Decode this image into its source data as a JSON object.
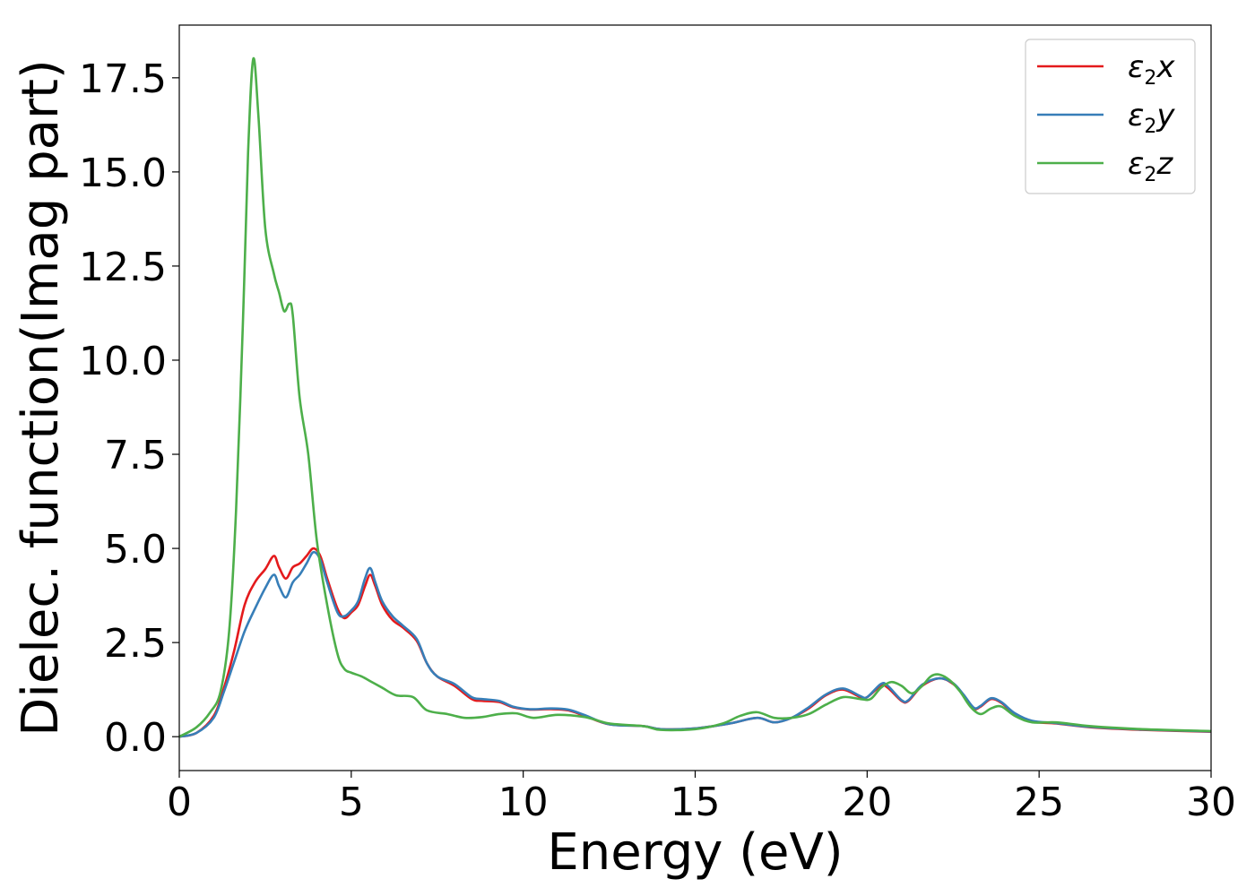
{
  "chart_data": {
    "type": "line",
    "xlabel": "Energy (eV)",
    "ylabel": "Dielec. function(Imag part)",
    "xlim": [
      0,
      30
    ],
    "ylim": [
      -0.9,
      18.9
    ],
    "xticks": [
      0,
      5,
      10,
      15,
      20,
      25,
      30
    ],
    "xtick_labels": [
      "0",
      "5",
      "10",
      "15",
      "20",
      "25",
      "30"
    ],
    "yticks": [
      0.0,
      2.5,
      5.0,
      7.5,
      10.0,
      12.5,
      15.0,
      17.5
    ],
    "ytick_labels": [
      "0.0",
      "2.5",
      "5.0",
      "7.5",
      "10.0",
      "12.5",
      "15.0",
      "17.5"
    ],
    "grid": false,
    "legend_position": "top-right",
    "series": [
      {
        "name": "ε₂x",
        "legend_base": "ε",
        "legend_sub": "2",
        "legend_tail": "x",
        "color": "#e41a1c",
        "x": [
          0,
          0.5,
          1.0,
          1.3,
          1.6,
          1.9,
          2.2,
          2.5,
          2.75,
          2.9,
          3.1,
          3.3,
          3.5,
          3.7,
          3.9,
          4.1,
          4.3,
          4.6,
          4.8,
          5.0,
          5.2,
          5.4,
          5.55,
          5.7,
          5.9,
          6.2,
          6.5,
          6.9,
          7.2,
          7.5,
          8.0,
          8.5,
          8.8,
          9.3,
          9.7,
          10.2,
          10.8,
          11.3,
          11.8,
          12.5,
          13.5,
          14.0,
          15.0,
          16.0,
          16.8,
          17.3,
          17.8,
          18.3,
          18.8,
          19.3,
          19.8,
          20.0,
          20.4,
          20.6,
          21.0,
          21.2,
          21.6,
          22.1,
          22.5,
          22.8,
          23.1,
          23.3,
          23.6,
          23.9,
          24.3,
          24.8,
          25.5,
          26.5,
          28.0,
          30.0
        ],
        "y": [
          0.0,
          0.1,
          0.55,
          1.3,
          2.3,
          3.5,
          4.1,
          4.45,
          4.8,
          4.5,
          4.2,
          4.5,
          4.6,
          4.8,
          5.0,
          4.8,
          4.2,
          3.4,
          3.15,
          3.3,
          3.5,
          4.0,
          4.3,
          4.0,
          3.5,
          3.1,
          2.9,
          2.55,
          1.95,
          1.6,
          1.35,
          1.0,
          0.95,
          0.92,
          0.78,
          0.72,
          0.73,
          0.7,
          0.55,
          0.33,
          0.28,
          0.2,
          0.22,
          0.35,
          0.5,
          0.38,
          0.5,
          0.75,
          1.1,
          1.25,
          1.05,
          1.05,
          1.35,
          1.3,
          0.95,
          0.95,
          1.35,
          1.55,
          1.4,
          1.1,
          0.75,
          0.8,
          1.0,
          0.9,
          0.6,
          0.4,
          0.35,
          0.25,
          0.18,
          0.13
        ]
      },
      {
        "name": "ε₂y",
        "legend_base": "ε",
        "legend_sub": "2",
        "legend_tail": "y",
        "color": "#377eb8",
        "x": [
          0,
          0.5,
          1.0,
          1.3,
          1.6,
          1.9,
          2.2,
          2.5,
          2.75,
          2.9,
          3.1,
          3.3,
          3.5,
          3.7,
          3.9,
          4.1,
          4.3,
          4.6,
          4.8,
          5.0,
          5.2,
          5.4,
          5.55,
          5.7,
          5.9,
          6.2,
          6.5,
          6.9,
          7.2,
          7.5,
          8.0,
          8.5,
          8.8,
          9.3,
          9.7,
          10.2,
          10.8,
          11.3,
          11.8,
          12.5,
          13.5,
          14.0,
          15.0,
          16.0,
          16.8,
          17.3,
          17.8,
          18.3,
          18.8,
          19.3,
          19.8,
          20.0,
          20.4,
          20.6,
          21.0,
          21.2,
          21.6,
          22.1,
          22.5,
          22.8,
          23.1,
          23.3,
          23.6,
          23.9,
          24.3,
          24.8,
          25.5,
          26.5,
          28.0,
          30.0
        ],
        "y": [
          0.0,
          0.1,
          0.5,
          1.2,
          2.0,
          2.8,
          3.4,
          3.95,
          4.3,
          4.0,
          3.7,
          4.1,
          4.3,
          4.6,
          4.9,
          4.7,
          4.1,
          3.3,
          3.2,
          3.35,
          3.6,
          4.2,
          4.48,
          4.1,
          3.6,
          3.2,
          2.95,
          2.6,
          1.95,
          1.6,
          1.4,
          1.05,
          1.0,
          0.95,
          0.8,
          0.73,
          0.75,
          0.72,
          0.57,
          0.33,
          0.28,
          0.2,
          0.22,
          0.35,
          0.5,
          0.38,
          0.5,
          0.78,
          1.12,
          1.28,
          1.08,
          1.05,
          1.4,
          1.35,
          0.97,
          0.97,
          1.38,
          1.55,
          1.42,
          1.12,
          0.77,
          0.82,
          1.02,
          0.92,
          0.62,
          0.42,
          0.36,
          0.26,
          0.19,
          0.14
        ]
      },
      {
        "name": "ε₂z",
        "legend_base": "ε",
        "legend_sub": "2",
        "legend_tail": "z",
        "color": "#4daf4a",
        "x": [
          0,
          0.5,
          0.9,
          1.2,
          1.45,
          1.65,
          1.85,
          2.0,
          2.15,
          2.3,
          2.5,
          2.75,
          2.9,
          3.05,
          3.2,
          3.3,
          3.5,
          3.75,
          4.0,
          4.3,
          4.6,
          4.8,
          5.0,
          5.3,
          5.6,
          5.9,
          6.3,
          6.8,
          7.2,
          7.8,
          8.3,
          8.8,
          9.3,
          9.8,
          10.3,
          11.0,
          11.8,
          12.5,
          13.5,
          14.0,
          15.0,
          15.8,
          16.3,
          16.8,
          17.3,
          17.8,
          18.3,
          18.8,
          19.3,
          19.8,
          20.1,
          20.4,
          20.7,
          21.0,
          21.3,
          21.6,
          21.85,
          22.1,
          22.4,
          22.7,
          23.0,
          23.3,
          23.6,
          23.9,
          24.3,
          24.8,
          25.5,
          26.5,
          28.0,
          30.0
        ],
        "y": [
          0.0,
          0.25,
          0.65,
          1.2,
          2.8,
          6.0,
          11.0,
          15.5,
          18.0,
          16.5,
          13.5,
          12.3,
          11.8,
          11.3,
          11.5,
          11.2,
          9.0,
          7.5,
          5.2,
          3.5,
          2.2,
          1.8,
          1.7,
          1.6,
          1.45,
          1.3,
          1.1,
          1.05,
          0.7,
          0.6,
          0.5,
          0.52,
          0.6,
          0.62,
          0.5,
          0.58,
          0.52,
          0.35,
          0.28,
          0.18,
          0.2,
          0.35,
          0.55,
          0.65,
          0.5,
          0.5,
          0.6,
          0.85,
          1.05,
          1.0,
          1.0,
          1.3,
          1.45,
          1.35,
          1.15,
          1.35,
          1.6,
          1.65,
          1.5,
          1.2,
          0.8,
          0.6,
          0.75,
          0.8,
          0.55,
          0.38,
          0.38,
          0.28,
          0.2,
          0.15
        ]
      }
    ]
  }
}
